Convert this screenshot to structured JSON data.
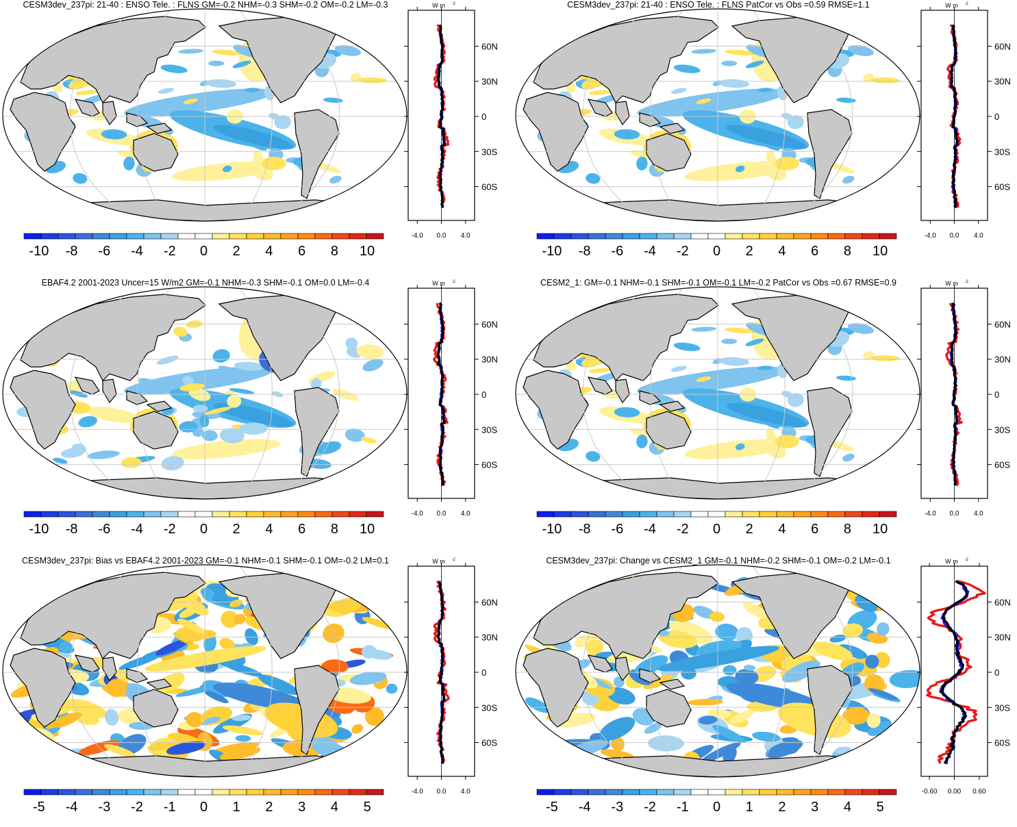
{
  "units_label": "W m",
  "units_exponent": "-2",
  "lat_labels": [
    "60N",
    "30N",
    "0",
    "30S",
    "60S"
  ],
  "colors": {
    "land": "#c8c8c8",
    "grid": "#c8c8c8",
    "line_red": "#e8191e",
    "line_blue": "#1a1aff",
    "line_black": "#000000"
  },
  "palette": [
    "#0b1ef0",
    "#1b3be6",
    "#2c55dd",
    "#3a6fd8",
    "#3f8ad8",
    "#3aa1e0",
    "#4cb3ea",
    "#7fc3ee",
    "#a8d6f2",
    "#ffffff",
    "#ffffff",
    "#fff19a",
    "#ffe35c",
    "#ffd23a",
    "#ffbc2b",
    "#ffa31f",
    "#ff8a17",
    "#f96a16",
    "#f04818",
    "#e32818",
    "#c8141a"
  ],
  "panels": [
    {
      "title": "CESM3dev_237pi: 21-40 : ENSO Tele. : FLNS GM=-0.2 NHM=-0.3 SHM=-0.2 OM=-0.2 LM=-0.3",
      "colorbar_labels": [
        "-10",
        "-8",
        "-6",
        "-4",
        "-2",
        "0",
        "2",
        "4",
        "6",
        "8",
        "10"
      ],
      "profile_ticks": [
        "-4.0",
        "0.0",
        "4.0"
      ],
      "profile_range": [
        -5.5,
        5.5
      ],
      "style": "enso_model"
    },
    {
      "title": "CESM3dev_237pi: 21-40 : ENSO Tele. : FLNS PatCor vs Obs =0.59 RMSE=1.1",
      "colorbar_labels": [
        "-10",
        "-8",
        "-6",
        "-4",
        "-2",
        "0",
        "2",
        "4",
        "6",
        "8",
        "10"
      ],
      "profile_ticks": [
        "-4.0",
        "0.0",
        "4.0"
      ],
      "profile_range": [
        -5.5,
        5.5
      ],
      "style": "enso_model"
    },
    {
      "title": "EBAF4.2 2001-2023 Uncer=15 W/m2 GM=-0.1 NHM=-0.3 SHM=-0.1 OM=0.0 LM=-0.4",
      "colorbar_labels": [
        "-10",
        "-8",
        "-6",
        "-4",
        "-2",
        "0",
        "2",
        "4",
        "6",
        "8",
        "10"
      ],
      "profile_ticks": [
        "-4.0",
        "0.0",
        "4.0"
      ],
      "profile_range": [
        -5.5,
        5.5
      ],
      "style": "enso_obs"
    },
    {
      "title": "CESM2_1: GM=-0.1 NHM=-0.1 SHM=-0.1 OM=-0.1 LM=-0.2 PatCor vs Obs =0.67 RMSE=0.9",
      "colorbar_labels": [
        "-10",
        "-8",
        "-6",
        "-4",
        "-2",
        "0",
        "2",
        "4",
        "6",
        "8",
        "10"
      ],
      "profile_ticks": [
        "-4.0",
        "0.0",
        "4.0"
      ],
      "profile_range": [
        -5.5,
        5.5
      ],
      "style": "enso_cesm2"
    },
    {
      "title": "CESM3dev_237pi: Bias vs EBAF4.2 2001-2023 GM=-0.1 NHM=-0.1 SHM=-0.1 OM=-0.2 LM=0.1",
      "colorbar_labels": [
        "-5",
        "-4",
        "-3",
        "-2",
        "-1",
        "0",
        "1",
        "2",
        "3",
        "4",
        "5"
      ],
      "profile_ticks": [
        "-4.0",
        "0.0",
        "4.0"
      ],
      "profile_range": [
        -5.5,
        5.5
      ],
      "style": "bias"
    },
    {
      "title": "CESM3dev_237pi: Change vs CESM2_1 GM=-0.1 NHM=-0.2 SHM=-0.1 OM=-0.2 LM=-0.1",
      "colorbar_labels": [
        "-5",
        "-4",
        "-3",
        "-2",
        "-1",
        "0",
        "1",
        "2",
        "3",
        "4",
        "5"
      ],
      "profile_ticks": [
        "-0.60",
        "0.00",
        "0.60"
      ],
      "profile_range": [
        -0.8,
        0.8
      ],
      "style": "change"
    }
  ]
}
